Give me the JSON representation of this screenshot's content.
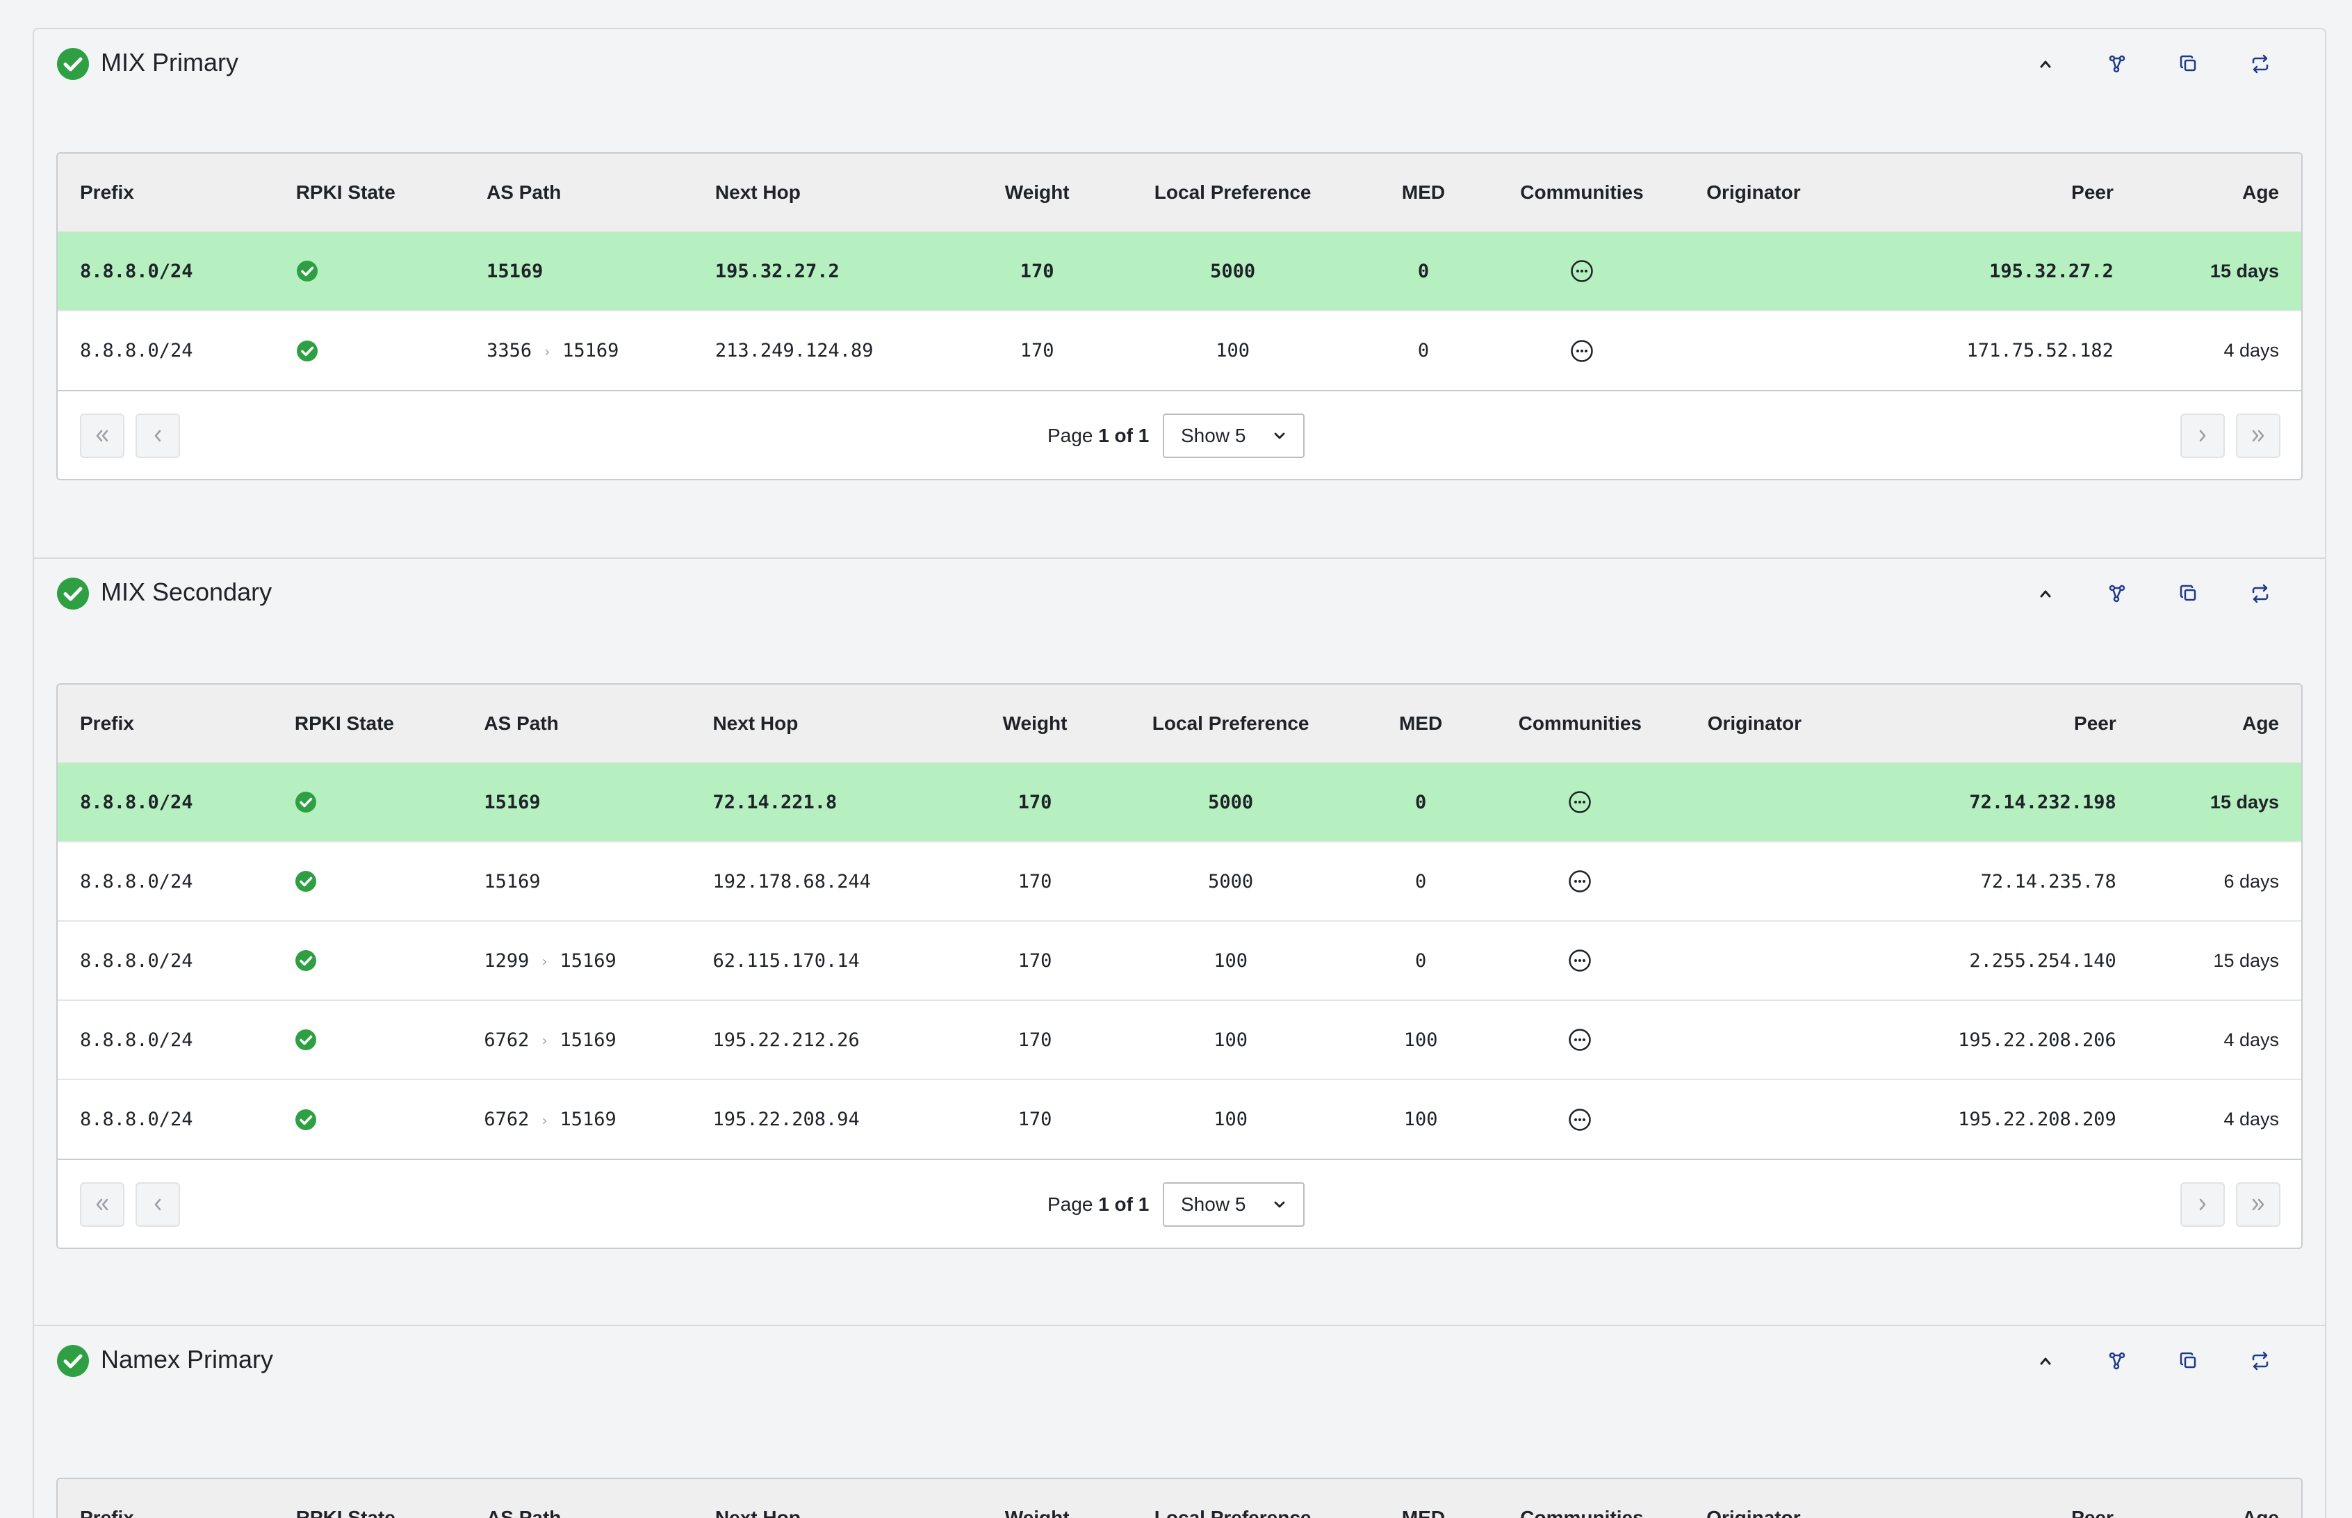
{
  "colors": {
    "success": "#2ea043",
    "primary_row": "#b6f0c1",
    "header_bg": "#efefef",
    "icon": "#1f3a8a"
  },
  "columns": [
    "Prefix",
    "RPKI State",
    "AS Path",
    "Next Hop",
    "Weight",
    "Local Preference",
    "MED",
    "Communities",
    "Originator",
    "Peer",
    "Age"
  ],
  "routers": [
    {
      "name": "MIX Primary",
      "status": "ok",
      "pager": {
        "page_label": "Page",
        "page": "1 of 1",
        "show": "Show 5"
      },
      "rows": [
        {
          "primary": true,
          "prefix": "8.8.8.0/24",
          "rpki": "valid",
          "as_path": [
            "15169"
          ],
          "next_hop": "195.32.27.2",
          "weight": "170",
          "local_pref": "5000",
          "med": "0",
          "communities": "ellipsis-icon",
          "originator": "",
          "peer": "195.32.27.2",
          "age": "15 days"
        },
        {
          "primary": false,
          "prefix": "8.8.8.0/24",
          "rpki": "valid",
          "as_path": [
            "3356",
            "15169"
          ],
          "next_hop": "213.249.124.89",
          "weight": "170",
          "local_pref": "100",
          "med": "0",
          "communities": "ellipsis-icon",
          "originator": "",
          "peer": "171.75.52.182",
          "age": "4 days"
        }
      ]
    },
    {
      "name": "MIX Secondary",
      "status": "ok",
      "pager": {
        "page_label": "Page",
        "page": "1 of 1",
        "show": "Show 5"
      },
      "rows": [
        {
          "primary": true,
          "prefix": "8.8.8.0/24",
          "rpki": "valid",
          "as_path": [
            "15169"
          ],
          "next_hop": "72.14.221.8",
          "weight": "170",
          "local_pref": "5000",
          "med": "0",
          "communities": "ellipsis-icon",
          "originator": "",
          "peer": "72.14.232.198",
          "age": "15 days"
        },
        {
          "primary": false,
          "prefix": "8.8.8.0/24",
          "rpki": "valid",
          "as_path": [
            "15169"
          ],
          "next_hop": "192.178.68.244",
          "weight": "170",
          "local_pref": "5000",
          "med": "0",
          "communities": "ellipsis-icon",
          "originator": "",
          "peer": "72.14.235.78",
          "age": "6 days"
        },
        {
          "primary": false,
          "prefix": "8.8.8.0/24",
          "rpki": "valid",
          "as_path": [
            "1299",
            "15169"
          ],
          "next_hop": "62.115.170.14",
          "weight": "170",
          "local_pref": "100",
          "med": "0",
          "communities": "ellipsis-icon",
          "originator": "",
          "peer": "2.255.254.140",
          "age": "15 days"
        },
        {
          "primary": false,
          "prefix": "8.8.8.0/24",
          "rpki": "valid",
          "as_path": [
            "6762",
            "15169"
          ],
          "next_hop": "195.22.212.26",
          "weight": "170",
          "local_pref": "100",
          "med": "100",
          "communities": "ellipsis-icon",
          "originator": "",
          "peer": "195.22.208.206",
          "age": "4 days"
        },
        {
          "primary": false,
          "prefix": "8.8.8.0/24",
          "rpki": "valid",
          "as_path": [
            "6762",
            "15169"
          ],
          "next_hop": "195.22.208.94",
          "weight": "170",
          "local_pref": "100",
          "med": "100",
          "communities": "ellipsis-icon",
          "originator": "",
          "peer": "195.22.208.209",
          "age": "4 days"
        }
      ]
    },
    {
      "name": "Namex Primary",
      "status": "ok",
      "rows": []
    }
  ]
}
